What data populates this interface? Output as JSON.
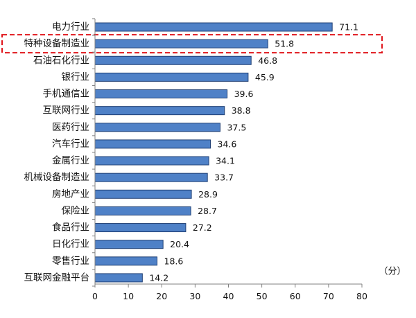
{
  "chart_data": {
    "type": "bar",
    "orientation": "horizontal",
    "categories": [
      "电力行业",
      "特种设备制造业",
      "石油石化行业",
      "银行业",
      "手机通信业",
      "互联网行业",
      "医药行业",
      "汽车行业",
      "金属行业",
      "机械设备制造业",
      "房地产业",
      "保险业",
      "食品行业",
      "日化行业",
      "零售行业",
      "互联网金融平台"
    ],
    "values": [
      71.1,
      51.8,
      46.8,
      45.9,
      39.6,
      38.8,
      37.5,
      34.6,
      34.1,
      33.7,
      28.9,
      28.7,
      27.2,
      20.4,
      18.6,
      14.2
    ],
    "value_labels": [
      "71.1",
      "51.8",
      "46.8",
      "45.9",
      "39.6",
      "38.8",
      "37.5",
      "34.6",
      "34.1",
      "33.7",
      "28.9",
      "28.7",
      "27.2",
      "20.4",
      "18.6",
      "14.2"
    ],
    "xlim": [
      0,
      80
    ],
    "x_ticks": [
      "0",
      "10",
      "20",
      "30",
      "40",
      "50",
      "60",
      "70",
      "80"
    ],
    "unit_label": "（分）",
    "highlighted_category": "特种设备制造业",
    "grid": false,
    "legend": "none",
    "colors": {
      "bar_fill": "#4f81c7",
      "bar_stroke": "#1f3f74",
      "axis": "#808080",
      "highlight_border": "#e0141a"
    }
  }
}
